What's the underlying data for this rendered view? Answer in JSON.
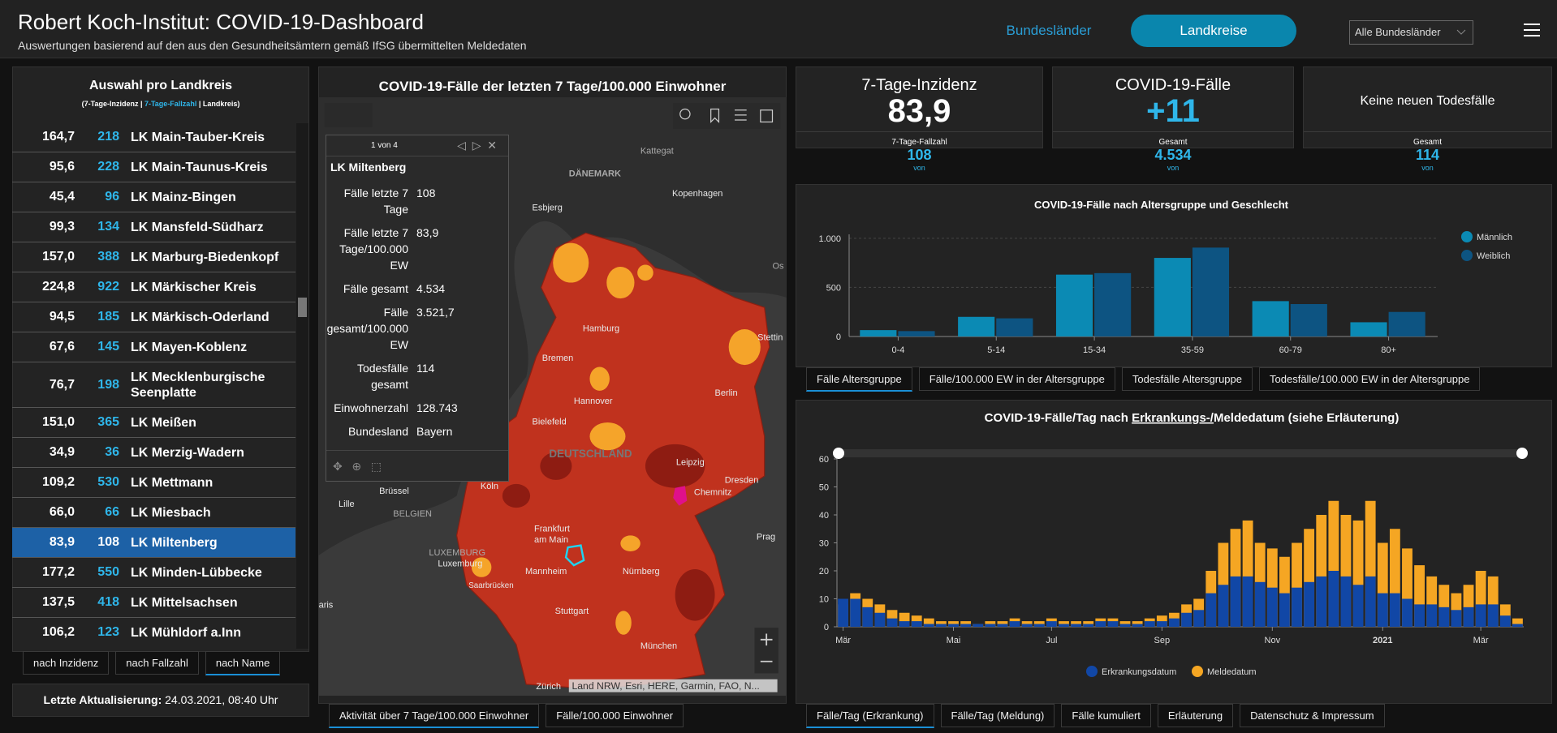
{
  "header": {
    "title": "Robert Koch-Institut: COVID-19-Dashboard",
    "subtitle": "Auswertungen basierend auf den aus den Gesundheitsämtern gemäß IfSG übermittelten Meldedaten",
    "tabs": [
      "Bundesländer",
      "Landkreise"
    ],
    "select": "Alle Bundesländer"
  },
  "list": {
    "title": "Auswahl pro Landkreis",
    "subtitle": [
      "(7-Tage-Inzidenz | ",
      "7-Tage-Fallzahl",
      " | Landkreis)"
    ],
    "selected": 13,
    "rows": [
      {
        "incidence": "164,7",
        "cases": 218,
        "name": "LK Main-Tauber-Kreis"
      },
      {
        "incidence": "95,6",
        "cases": 228,
        "name": "LK Main-Taunus-Kreis"
      },
      {
        "incidence": "45,4",
        "cases": 96,
        "name": "LK Mainz-Bingen"
      },
      {
        "incidence": "99,3",
        "cases": 134,
        "name": "LK Mansfeld-Südharz"
      },
      {
        "incidence": "157,0",
        "cases": 388,
        "name": "LK Marburg-Biedenkopf"
      },
      {
        "incidence": "224,8",
        "cases": 922,
        "name": "LK Märkischer Kreis"
      },
      {
        "incidence": "94,5",
        "cases": 185,
        "name": "LK Märkisch-Oderland"
      },
      {
        "incidence": "67,6",
        "cases": 145,
        "name": "LK Mayen-Koblenz"
      },
      {
        "incidence": "76,7",
        "cases": 198,
        "name": "LK Mecklenburgische Seenplatte"
      },
      {
        "incidence": "151,0",
        "cases": 365,
        "name": "LK Meißen"
      },
      {
        "incidence": "34,9",
        "cases": 36,
        "name": "LK Merzig-Wadern"
      },
      {
        "incidence": "109,2",
        "cases": 530,
        "name": "LK Mettmann"
      },
      {
        "incidence": "66,0",
        "cases": 66,
        "name": "LK Miesbach"
      },
      {
        "incidence": "83,9",
        "cases": 108,
        "name": "LK Miltenberg"
      },
      {
        "incidence": "177,2",
        "cases": 550,
        "name": "LK Minden-Lübbecke"
      },
      {
        "incidence": "137,5",
        "cases": 418,
        "name": "LK Mittelsachsen"
      },
      {
        "incidence": "106,2",
        "cases": 123,
        "name": "LK Mühldorf a.Inn"
      }
    ],
    "sort_tabs": [
      "nach Inzidenz",
      "nach Fallzahl",
      "nach Name"
    ],
    "sort_active": 2,
    "updated_label": "Letzte Aktualisierung:",
    "updated_value": "24.03.2021, 08:40 Uhr"
  },
  "map": {
    "title": "COVID-19-Fälle der letzten 7 Tage/100.000 Einwohner",
    "labels": [
      "Kattegat",
      "DÄNEMARK",
      "Kopenhagen",
      "Esbjerg",
      "Os",
      "Stettin",
      "Hamburg",
      "Bremen",
      "Berlin",
      "Hannover",
      "Bielefeld",
      "DEUTSCHLAND",
      "Leipzig",
      "Dresden",
      "Chemnitz",
      "Köln",
      "Brüssel",
      "BELGIEN",
      "Lille",
      "Frankfurt",
      "am Main",
      "Prag",
      "LUXEMBURG",
      "Luxemburg",
      "Mannheim",
      "Nürnberg",
      "Saarbrücken",
      "Stuttgart",
      "München",
      "Zürich",
      "aris"
    ],
    "attribution": "Land NRW, Esri, HERE, Garmin, FAO, N...",
    "popup": {
      "pager": "1 von 4",
      "title": "LK Miltenberg",
      "fields": [
        {
          "label": "Fälle letzte 7 Tage",
          "value": "108"
        },
        {
          "label": "Fälle letzte 7 Tage/100.000 EW",
          "value": "83,9"
        },
        {
          "label": "Fälle gesamt",
          "value": "4.534"
        },
        {
          "label": "Fälle gesamt/100.000 EW",
          "value": "3.521,7"
        },
        {
          "label": "Todesfälle gesamt",
          "value": "114"
        },
        {
          "label": "Einwohnerzahl",
          "value": "128.743"
        },
        {
          "label": "Bundesland",
          "value": "Bayern"
        }
      ]
    },
    "tabs": [
      "Aktivität über 7 Tage/100.000 Einwohner",
      "Fälle/100.000 Einwohner"
    ],
    "tabs_active": 0
  },
  "kpis": [
    {
      "title": "7-Tage-Inzidenz",
      "value": "83,9",
      "sub_label": "7-Tage-Fallzahl",
      "sub_value": "108",
      "link": "von"
    },
    {
      "title": "COVID-19-Fälle",
      "value": "+11",
      "sub_label": "Gesamt",
      "sub_value": "4.534",
      "link": "von"
    },
    {
      "title": "Keine neuen Todesfälle",
      "sub_label": "Gesamt",
      "sub_value": "114",
      "link": "von"
    }
  ],
  "chart_data": [
    {
      "type": "bar",
      "mode": "grouped",
      "title": "COVID-19-Fälle nach Altersgruppe und Geschlecht",
      "categories": [
        "0-4",
        "5-14",
        "15-34",
        "35-59",
        "60-79",
        "80+"
      ],
      "series": [
        {
          "name": "Männlich",
          "color": "#0b8ab4",
          "values": [
            65,
            200,
            630,
            800,
            360,
            145
          ]
        },
        {
          "name": "Weiblich",
          "color": "#0d5482",
          "values": [
            55,
            185,
            645,
            905,
            330,
            250
          ]
        }
      ],
      "ylim": [
        0,
        1040
      ],
      "yticks": [
        0,
        500,
        {
          "value": 1000,
          "label": "1.000"
        }
      ],
      "grid": true,
      "legend": "right",
      "tabs": [
        "Fälle Altersgruppe",
        "Fälle/100.000 EW in der Altersgruppe",
        "Todesfälle Altersgruppe",
        "Todesfälle/100.000 EW in der Altersgruppe"
      ],
      "tabs_active": 0
    },
    {
      "type": "bar",
      "mode": "overlay",
      "title": [
        "COVID-19-Fälle/Tag nach ",
        "Erkrankungs-/",
        "Meldedatum (siehe Erläuterung)"
      ],
      "categories": [
        "Mär",
        null,
        null,
        null,
        null,
        null,
        null,
        null,
        null,
        "Mai",
        null,
        null,
        null,
        null,
        null,
        null,
        null,
        "Jul",
        null,
        null,
        null,
        null,
        null,
        null,
        null,
        null,
        "Sep",
        null,
        null,
        null,
        null,
        null,
        null,
        null,
        null,
        "Nov",
        null,
        null,
        null,
        null,
        null,
        null,
        null,
        null,
        "2021",
        null,
        null,
        null,
        null,
        null,
        null,
        null,
        "Mär",
        null,
        null,
        null
      ],
      "series": [
        {
          "name": "Meldedatum",
          "color": "#f5a623",
          "values": [
            8,
            12,
            10,
            8,
            6,
            5,
            4,
            3,
            2,
            2,
            2,
            1,
            2,
            2,
            3,
            2,
            2,
            3,
            2,
            2,
            2,
            3,
            3,
            2,
            2,
            3,
            4,
            5,
            8,
            10,
            20,
            30,
            35,
            38,
            30,
            28,
            25,
            30,
            35,
            40,
            45,
            40,
            38,
            45,
            30,
            35,
            28,
            22,
            18,
            15,
            12,
            15,
            20,
            18,
            8,
            3
          ]
        },
        {
          "name": "Erkrankungsdatum",
          "color": "#1147a6",
          "values": [
            10,
            10,
            7,
            5,
            3,
            2,
            2,
            1,
            1,
            1,
            1,
            1,
            1,
            1,
            2,
            1,
            1,
            2,
            1,
            1,
            1,
            2,
            2,
            1,
            1,
            2,
            2,
            3,
            5,
            6,
            12,
            15,
            18,
            18,
            16,
            14,
            12,
            14,
            16,
            18,
            20,
            18,
            15,
            18,
            12,
            12,
            10,
            8,
            8,
            7,
            6,
            7,
            8,
            8,
            4,
            1
          ]
        }
      ],
      "ylim": [
        0,
        60
      ],
      "yticks": [
        0,
        10,
        20,
        30,
        40,
        50,
        60
      ],
      "grid": false,
      "legend": "bottom",
      "tabs": [
        "Fälle/Tag (Erkrankung)",
        "Fälle/Tag (Meldung)",
        "Fälle kumuliert",
        "Erläuterung",
        "Datenschutz & Impressum"
      ],
      "tabs_active": 0
    }
  ]
}
